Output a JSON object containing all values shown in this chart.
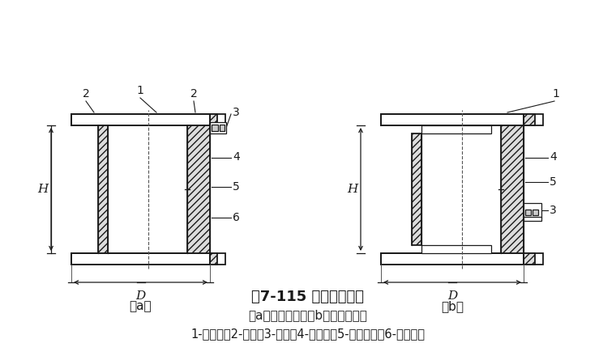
{
  "title": "图7-115 锤击力传感器",
  "subtitle": "（a）用于帽上；（b）用于垫木上",
  "legend": "1-法兰盘；2-盖板；3-插座；4-电阻片；5-弹性元件；6-防水胶片",
  "bg_color": "#ffffff",
  "line_color": "#1a1a1a",
  "title_fontsize": 13,
  "sub_fontsize": 11,
  "legend_fontsize": 10.5,
  "fig_w": 7.6,
  "fig_h": 4.45,
  "dpi": 100
}
